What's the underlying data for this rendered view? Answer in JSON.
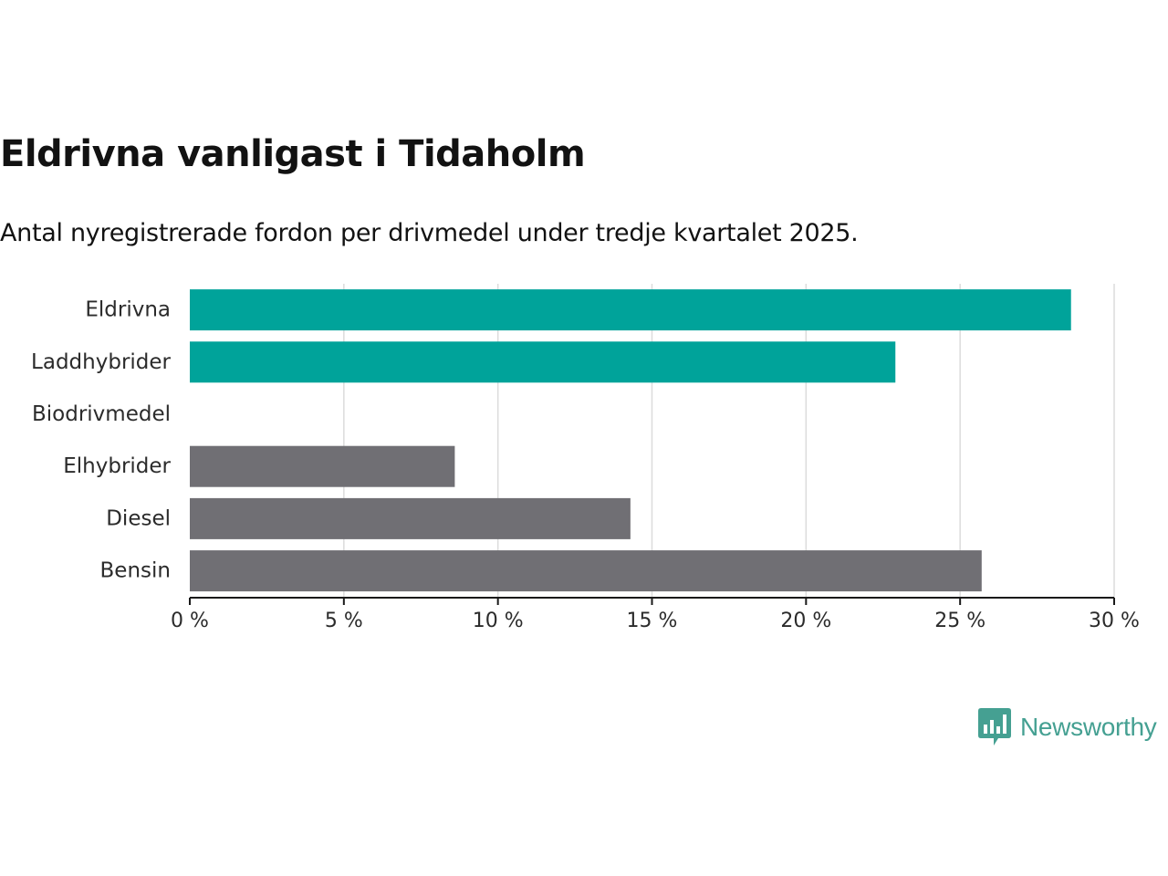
{
  "header": {
    "title": "Eldrivna vanligast i Tidaholm",
    "subtitle": "Antal nyregistrerade fordon per drivmedel under tredje kvartalet 2025."
  },
  "chart_data": {
    "type": "bar",
    "orientation": "horizontal",
    "categories": [
      "Eldrivna",
      "Laddhybrider",
      "Biodrivmedel",
      "Elhybrider",
      "Diesel",
      "Bensin"
    ],
    "values": [
      28.6,
      22.9,
      0,
      8.6,
      14.3,
      25.7
    ],
    "unit": "%",
    "xlim": [
      0,
      30
    ],
    "xticks": [
      0,
      5,
      10,
      15,
      20,
      25,
      30
    ],
    "xtick_labels": [
      "0 %",
      "5 %",
      "10 %",
      "15 %",
      "20 %",
      "25 %",
      "30 %"
    ],
    "grid": true,
    "colors": {
      "Eldrivna": "#00a39a",
      "Laddhybrider": "#00a39a",
      "Biodrivmedel": "#00a39a",
      "Elhybrider": "#706f74",
      "Diesel": "#706f74",
      "Bensin": "#706f74"
    }
  },
  "brand": {
    "name": "Newsworthy",
    "icon": "newsworthy-logo-icon",
    "color": "#45a092"
  }
}
